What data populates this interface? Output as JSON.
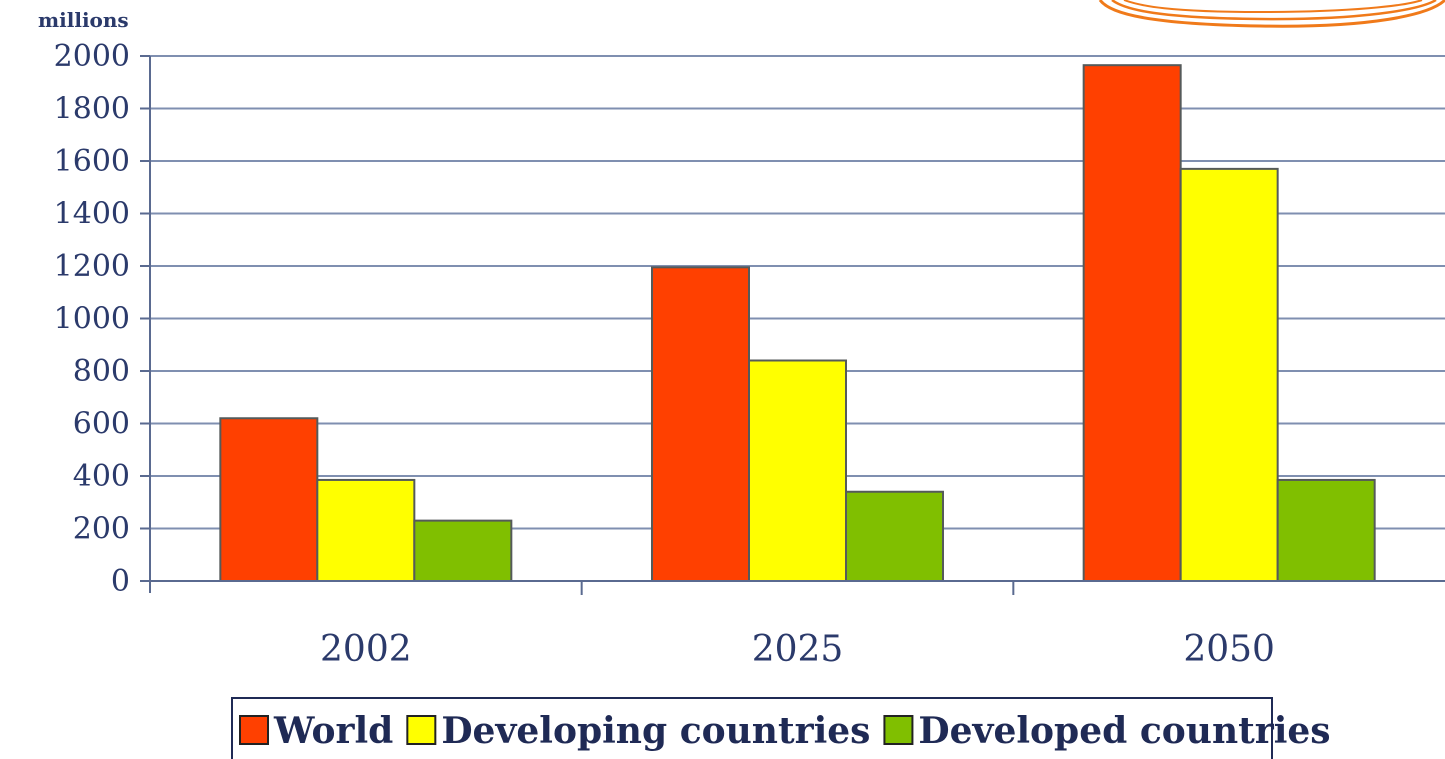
{
  "chart_data": {
    "type": "bar",
    "unit_label": "millions",
    "categories": [
      "2002",
      "2025",
      "2050"
    ],
    "series": [
      {
        "name": "World",
        "values": [
          620,
          1195,
          1965
        ],
        "color": "#ff4000"
      },
      {
        "name": "Developing countries",
        "values": [
          385,
          840,
          1570
        ],
        "color": "#ffff00"
      },
      {
        "name": "Developed countries",
        "values": [
          230,
          340,
          385
        ],
        "color": "#80bf00"
      }
    ],
    "ylim": [
      0,
      2000
    ],
    "yticks": [
      0,
      200,
      400,
      600,
      800,
      1000,
      1200,
      1400,
      1600,
      1800,
      2000
    ],
    "grid": true,
    "legend": "bottom"
  }
}
